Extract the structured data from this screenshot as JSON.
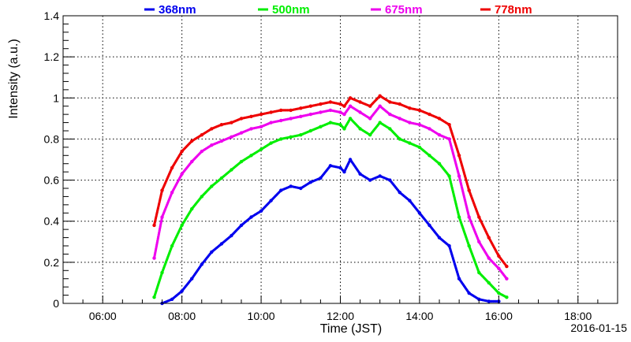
{
  "chart_data": {
    "type": "scatter",
    "xlabel": "Time (JST)",
    "ylabel": "Intensity (a.u.)",
    "date": "2016-01-15",
    "xlim": [
      5.0,
      19.0
    ],
    "ylim": [
      0,
      1.4
    ],
    "x_ticks": [
      {
        "value": 6,
        "label": "06:00"
      },
      {
        "value": 8,
        "label": "08:00"
      },
      {
        "value": 10,
        "label": "10:00"
      },
      {
        "value": 12,
        "label": "12:00"
      },
      {
        "value": 14,
        "label": "14:00"
      },
      {
        "value": 16,
        "label": "16:00"
      },
      {
        "value": 18,
        "label": "18:00"
      }
    ],
    "y_ticks": [
      {
        "value": 0,
        "label": "0"
      },
      {
        "value": 0.2,
        "label": "0.2"
      },
      {
        "value": 0.4,
        "label": "0.4"
      },
      {
        "value": 0.6,
        "label": "0.6"
      },
      {
        "value": 0.8,
        "label": "0.8"
      },
      {
        "value": 1.0,
        "label": "1"
      },
      {
        "value": 1.2,
        "label": "1.2"
      },
      {
        "value": 1.4,
        "label": "1.4"
      }
    ],
    "grid": true,
    "legend_position": "top",
    "series": [
      {
        "name": "368nm",
        "color": "#0000ee",
        "x": [
          7.5,
          7.75,
          8.0,
          8.25,
          8.5,
          8.75,
          9.0,
          9.25,
          9.5,
          9.75,
          10.0,
          10.25,
          10.5,
          10.75,
          11.0,
          11.25,
          11.5,
          11.75,
          12.0,
          12.1,
          12.25,
          12.5,
          12.75,
          13.0,
          13.25,
          13.5,
          13.75,
          14.0,
          14.25,
          14.5,
          14.75,
          15.0,
          15.25,
          15.5,
          15.75,
          16.0
        ],
        "y": [
          0.0,
          0.02,
          0.06,
          0.12,
          0.19,
          0.25,
          0.29,
          0.33,
          0.38,
          0.42,
          0.45,
          0.5,
          0.55,
          0.57,
          0.56,
          0.59,
          0.61,
          0.67,
          0.66,
          0.64,
          0.7,
          0.63,
          0.6,
          0.62,
          0.6,
          0.54,
          0.5,
          0.44,
          0.38,
          0.32,
          0.28,
          0.12,
          0.05,
          0.02,
          0.01,
          0.01
        ]
      },
      {
        "name": "500nm",
        "color": "#00ee00",
        "x": [
          7.3,
          7.5,
          7.75,
          8.0,
          8.25,
          8.5,
          8.75,
          9.0,
          9.25,
          9.5,
          9.75,
          10.0,
          10.25,
          10.5,
          10.75,
          11.0,
          11.25,
          11.5,
          11.75,
          12.0,
          12.1,
          12.25,
          12.5,
          12.75,
          13.0,
          13.25,
          13.5,
          13.75,
          14.0,
          14.25,
          14.5,
          14.75,
          15.0,
          15.25,
          15.5,
          15.75,
          16.0,
          16.2
        ],
        "y": [
          0.03,
          0.15,
          0.28,
          0.38,
          0.46,
          0.52,
          0.57,
          0.61,
          0.65,
          0.69,
          0.72,
          0.75,
          0.78,
          0.8,
          0.81,
          0.82,
          0.84,
          0.86,
          0.88,
          0.87,
          0.85,
          0.9,
          0.85,
          0.82,
          0.88,
          0.85,
          0.8,
          0.78,
          0.76,
          0.72,
          0.68,
          0.62,
          0.42,
          0.28,
          0.15,
          0.1,
          0.05,
          0.03
        ]
      },
      {
        "name": "675nm",
        "color": "#ee00ee",
        "x": [
          7.3,
          7.5,
          7.75,
          8.0,
          8.25,
          8.5,
          8.75,
          9.0,
          9.25,
          9.5,
          9.75,
          10.0,
          10.25,
          10.5,
          10.75,
          11.0,
          11.25,
          11.5,
          11.75,
          12.0,
          12.1,
          12.25,
          12.5,
          12.75,
          13.0,
          13.25,
          13.5,
          13.75,
          14.0,
          14.25,
          14.5,
          14.75,
          15.0,
          15.25,
          15.5,
          15.75,
          16.0,
          16.2
        ],
        "y": [
          0.22,
          0.42,
          0.54,
          0.63,
          0.69,
          0.74,
          0.77,
          0.79,
          0.81,
          0.83,
          0.85,
          0.86,
          0.88,
          0.89,
          0.9,
          0.91,
          0.92,
          0.93,
          0.94,
          0.93,
          0.92,
          0.96,
          0.93,
          0.9,
          0.96,
          0.92,
          0.9,
          0.88,
          0.87,
          0.85,
          0.82,
          0.8,
          0.62,
          0.42,
          0.3,
          0.22,
          0.17,
          0.12
        ]
      },
      {
        "name": "778nm",
        "color": "#ee0000",
        "x": [
          7.3,
          7.5,
          7.75,
          8.0,
          8.25,
          8.5,
          8.75,
          9.0,
          9.25,
          9.5,
          9.75,
          10.0,
          10.25,
          10.5,
          10.75,
          11.0,
          11.25,
          11.5,
          11.75,
          12.0,
          12.1,
          12.25,
          12.5,
          12.75,
          13.0,
          13.25,
          13.5,
          13.75,
          14.0,
          14.25,
          14.5,
          14.75,
          15.0,
          15.25,
          15.5,
          15.75,
          16.0,
          16.2
        ],
        "y": [
          0.38,
          0.55,
          0.66,
          0.74,
          0.79,
          0.82,
          0.85,
          0.87,
          0.88,
          0.9,
          0.91,
          0.92,
          0.93,
          0.94,
          0.94,
          0.95,
          0.96,
          0.97,
          0.98,
          0.97,
          0.96,
          1.0,
          0.98,
          0.96,
          1.01,
          0.98,
          0.97,
          0.95,
          0.94,
          0.92,
          0.9,
          0.87,
          0.72,
          0.55,
          0.42,
          0.32,
          0.23,
          0.18
        ]
      }
    ]
  }
}
